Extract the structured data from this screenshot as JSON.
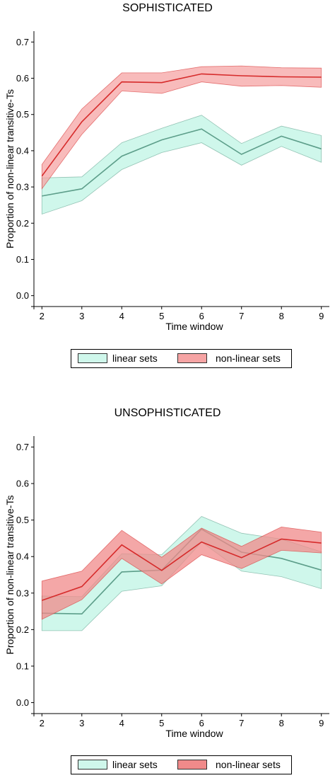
{
  "chart_data": [
    {
      "type": "line",
      "title": "SOPHISTICATED",
      "xlabel": "Time window",
      "ylabel": "Proportion of non-linear transitive-Ts",
      "x": [
        2,
        3,
        4,
        5,
        6,
        7,
        8,
        9
      ],
      "xlim": [
        1.8,
        9.2
      ],
      "ylim": [
        -0.03,
        0.73
      ],
      "yticks": [
        0.0,
        0.1,
        0.2,
        0.3,
        0.4,
        0.5,
        0.6,
        0.7
      ],
      "grid": false,
      "legend_position": "bottom",
      "series": [
        {
          "name": "linear sets",
          "line_color": "#5d9e8a",
          "fill_color": "#cff7eb",
          "values": [
            0.275,
            0.295,
            0.385,
            0.43,
            0.46,
            0.39,
            0.44,
            0.405
          ],
          "lower": [
            0.225,
            0.262,
            0.348,
            0.395,
            0.422,
            0.36,
            0.412,
            0.368
          ],
          "upper": [
            0.325,
            0.328,
            0.422,
            0.462,
            0.498,
            0.42,
            0.468,
            0.442
          ]
        },
        {
          "name": "non-linear sets",
          "line_color": "#d62b2b",
          "fill_color": "#f6a4a4",
          "values": [
            0.33,
            0.48,
            0.59,
            0.588,
            0.612,
            0.607,
            0.604,
            0.603
          ],
          "lower": [
            0.295,
            0.445,
            0.565,
            0.558,
            0.59,
            0.578,
            0.58,
            0.575
          ],
          "upper": [
            0.362,
            0.515,
            0.615,
            0.615,
            0.632,
            0.634,
            0.629,
            0.628
          ]
        }
      ]
    },
    {
      "type": "line",
      "title": "UNSOPHISTICATED",
      "xlabel": "Time window",
      "ylabel": "Proportion of non-linear transitive-Ts",
      "x": [
        2,
        3,
        4,
        5,
        6,
        7,
        8,
        9
      ],
      "xlim": [
        1.8,
        9.2
      ],
      "ylim": [
        -0.03,
        0.73
      ],
      "yticks": [
        0.0,
        0.1,
        0.2,
        0.3,
        0.4,
        0.5,
        0.6,
        0.7
      ],
      "grid": false,
      "legend_position": "bottom",
      "series": [
        {
          "name": "linear sets",
          "line_color": "#5d9e8a",
          "fill_color": "#cff7eb",
          "values": [
            0.245,
            0.243,
            0.358,
            0.363,
            0.475,
            0.412,
            0.395,
            0.363
          ],
          "lower": [
            0.197,
            0.197,
            0.305,
            0.32,
            0.44,
            0.36,
            0.345,
            0.312
          ],
          "upper": [
            0.292,
            0.29,
            0.408,
            0.405,
            0.51,
            0.464,
            0.448,
            0.413
          ]
        },
        {
          "name": "non-linear sets",
          "line_color": "#d62b2b",
          "fill_color": "#f08a8a",
          "values": [
            0.28,
            0.318,
            0.432,
            0.362,
            0.44,
            0.397,
            0.448,
            0.437
          ],
          "lower": [
            0.228,
            0.282,
            0.395,
            0.325,
            0.405,
            0.367,
            0.417,
            0.41
          ],
          "upper": [
            0.333,
            0.36,
            0.472,
            0.398,
            0.478,
            0.428,
            0.481,
            0.467
          ]
        }
      ]
    }
  ]
}
